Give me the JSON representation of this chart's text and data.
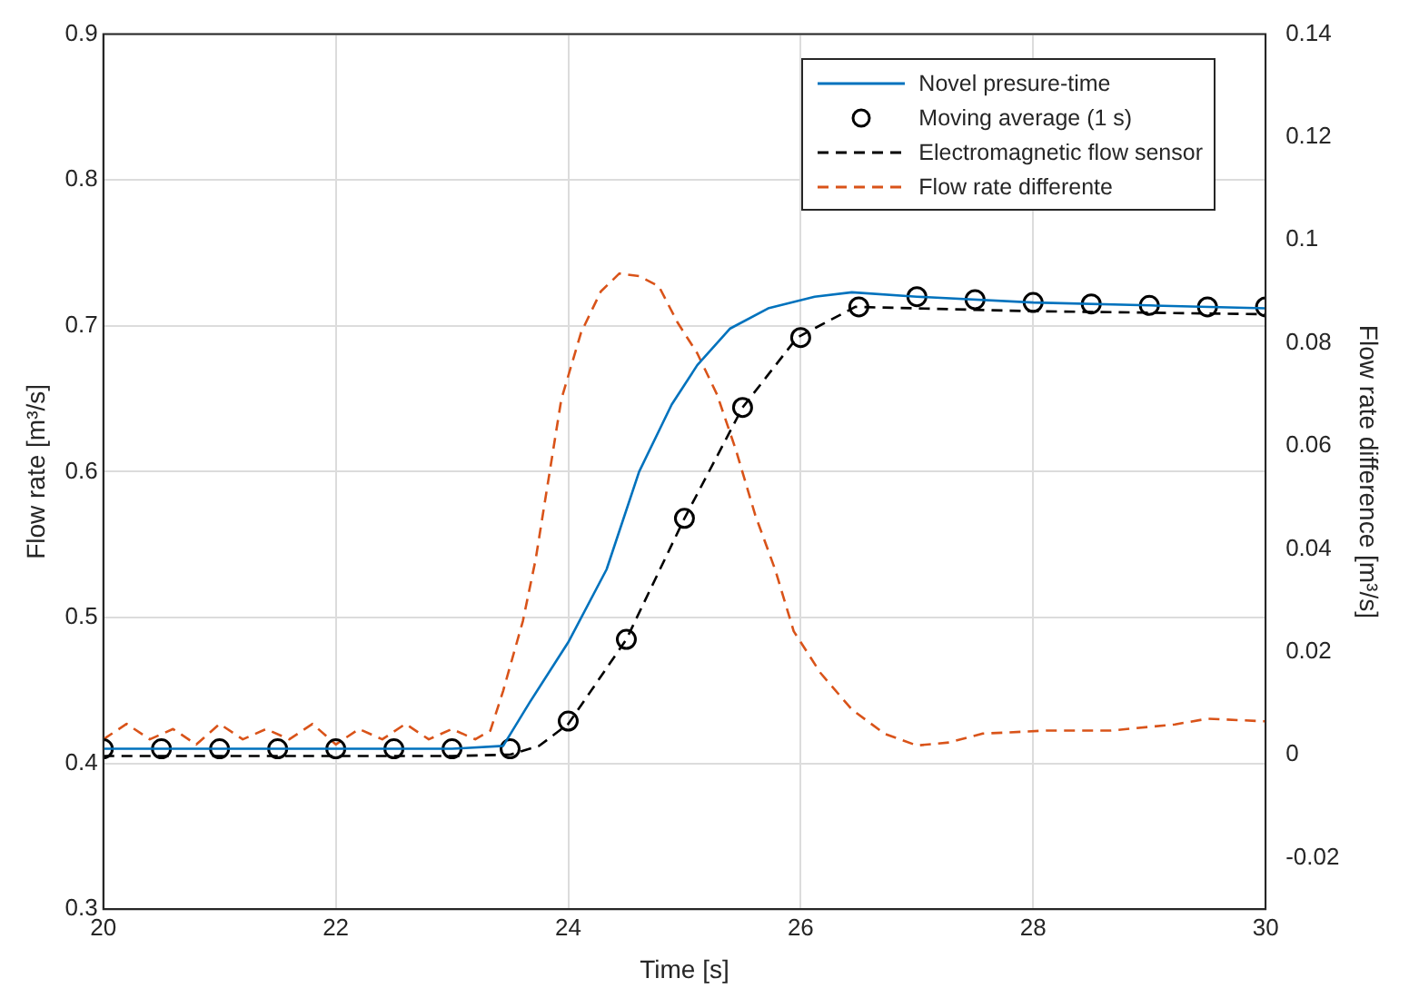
{
  "chart_data": {
    "type": "line",
    "xlabel": "Time [s]",
    "ylabel": "Flow rate [m³/s]",
    "y2label": "Flow rate difference [m³/s]",
    "xlim": [
      20,
      30
    ],
    "xticks": [
      20,
      22,
      24,
      26,
      28,
      30
    ],
    "ylim": [
      0.3,
      0.9
    ],
    "yticks": [
      0.3,
      0.4,
      0.5,
      0.6,
      0.7,
      0.8,
      0.9
    ],
    "y2lim": [
      -0.03,
      0.14
    ],
    "y2ticks": [
      -0.02,
      0,
      0.02,
      0.04,
      0.06,
      0.08,
      0.1,
      0.12,
      0.14
    ],
    "grid": true,
    "legend": "top right",
    "series": [
      {
        "name": "Novel presure-time",
        "type": "line",
        "color": "#0072bd",
        "line_style": "solid",
        "marker": "none",
        "x": [
          20,
          21,
          22,
          23,
          23.44,
          23.67,
          24,
          24.33,
          24.61,
          24.89,
          25.11,
          25.39,
          25.72,
          26.12,
          26.44,
          27,
          28,
          29,
          30
        ],
        "values": [
          0.41,
          0.41,
          0.41,
          0.41,
          0.412,
          0.442,
          0.483,
          0.533,
          0.6,
          0.646,
          0.673,
          0.698,
          0.712,
          0.72,
          0.723,
          0.72,
          0.716,
          0.714,
          0.712
        ]
      },
      {
        "name": "Moving average (1 s)",
        "type": "scatter",
        "color": "#000000",
        "marker": "circle",
        "x": [
          20,
          20.5,
          21,
          21.5,
          22,
          22.5,
          23,
          23.5,
          24,
          24.5,
          25,
          25.5,
          26,
          26.5,
          27,
          27.5,
          28,
          28.5,
          29,
          29.5,
          30
        ],
        "values": [
          0.41,
          0.41,
          0.41,
          0.41,
          0.41,
          0.41,
          0.41,
          0.41,
          0.429,
          0.485,
          0.568,
          0.644,
          0.692,
          0.713,
          0.72,
          0.718,
          0.716,
          0.715,
          0.714,
          0.713,
          0.713
        ]
      },
      {
        "name": "Electromagnetic flow sensor",
        "type": "line",
        "color": "#000000",
        "line_style": "dashed",
        "marker": "none",
        "x": [
          20,
          21,
          22,
          23,
          23.5,
          23.75,
          24,
          24.5,
          25,
          25.5,
          25.97,
          26.47,
          27,
          28,
          29,
          30
        ],
        "values": [
          0.405,
          0.405,
          0.405,
          0.405,
          0.406,
          0.412,
          0.427,
          0.485,
          0.568,
          0.644,
          0.692,
          0.713,
          0.712,
          0.71,
          0.709,
          0.708
        ]
      },
      {
        "name": "Flow rate differente",
        "type": "line",
        "axis": "y2",
        "color": "#d95319",
        "line_style": "dashed",
        "marker": "none",
        "x": [
          20,
          20.2,
          20.4,
          20.6,
          20.8,
          21,
          21.2,
          21.4,
          21.6,
          21.8,
          22,
          22.2,
          22.4,
          22.6,
          22.8,
          23,
          23.2,
          23.33,
          23.44,
          23.61,
          23.72,
          23.83,
          23.94,
          24.11,
          24.28,
          24.44,
          24.61,
          24.78,
          24.94,
          25.11,
          25.28,
          25.44,
          25.61,
          25.78,
          25.94,
          26.17,
          26.44,
          26.72,
          27,
          27.28,
          27.56,
          28.11,
          28.67,
          29.22,
          29.5,
          30
        ],
        "values": [
          0.003,
          0.006,
          0.003,
          0.005,
          0.002,
          0.006,
          0.003,
          0.005,
          0.003,
          0.006,
          0.002,
          0.005,
          0.003,
          0.006,
          0.003,
          0.005,
          0.003,
          0.0047,
          0.0124,
          0.026,
          0.038,
          0.0535,
          0.069,
          0.082,
          0.09,
          0.0935,
          0.093,
          0.091,
          0.084,
          0.078,
          0.07,
          0.0594,
          0.0465,
          0.036,
          0.024,
          0.0159,
          0.0088,
          0.0041,
          0.0018,
          0.0024,
          0.0041,
          0.0047,
          0.0047,
          0.0059,
          0.007,
          0.0065
        ]
      }
    ]
  }
}
